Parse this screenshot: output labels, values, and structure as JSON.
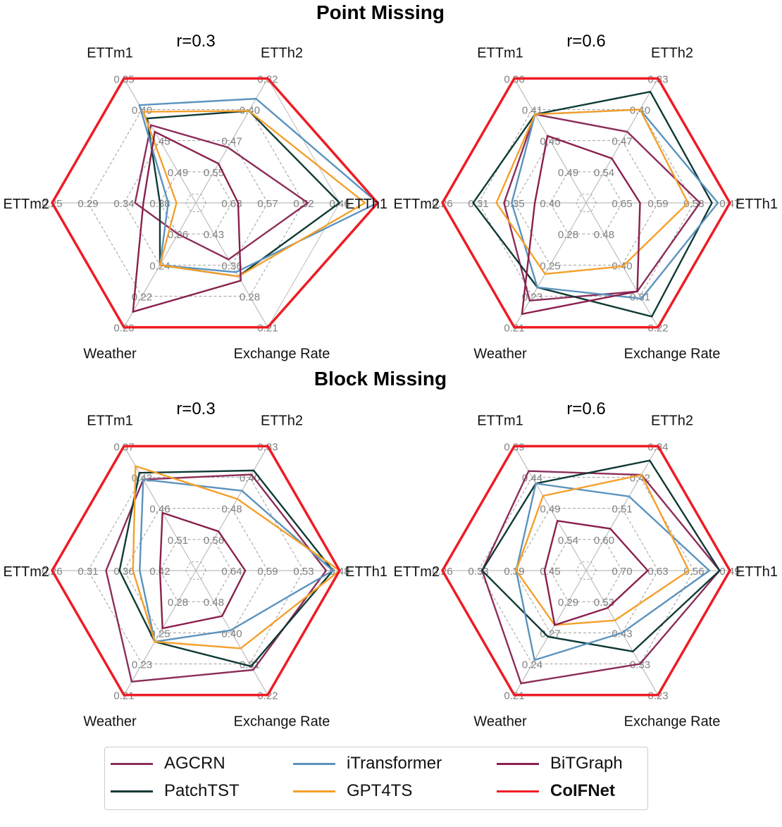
{
  "titles": {
    "top": "Point Missing",
    "bottom": "Block Missing"
  },
  "colors": {
    "AGCRN": "#8c2d5a",
    "PatchTST": "#0f3a36",
    "iTransformer": "#5b93be",
    "GPT4TS": "#f4a02b",
    "BiTGraph": "#8a1f4e",
    "CoIFNet": "#ee1c25",
    "grid_solid": "#bdbdbd",
    "grid_dash": "#9e9e9e",
    "tick": "#808080"
  },
  "legend": [
    {
      "name": "AGCRN",
      "label": "AGCRN",
      "bold": false
    },
    {
      "name": "PatchTST",
      "label": "PatchTST",
      "bold": false
    },
    {
      "name": "iTransformer",
      "label": "iTransformer",
      "bold": false
    },
    {
      "name": "GPT4TS",
      "label": "GPT4TS",
      "bold": false
    },
    {
      "name": "BiTGraph",
      "label": "BiTGraph",
      "bold": false
    },
    {
      "name": "CoIFNet",
      "label": "CoIFNet",
      "bold": true
    }
  ],
  "chart_data": [
    {
      "type": "radar",
      "section": "Point Missing",
      "title": "r=0.3",
      "axes": [
        "ETTh1",
        "ETTh2",
        "ETTm1",
        "ETTm2",
        "Weather",
        "Exchange Rate"
      ],
      "tick_labels": [
        [
          "0.63",
          "0.57",
          "0.52",
          "0.46"
        ],
        [
          "0.55",
          "0.47",
          "0.40",
          "0.32"
        ],
        [
          "0.49",
          "0.45",
          "0.40",
          "0.35"
        ],
        [
          "0.38",
          "0.34",
          "0.29",
          "0.25"
        ],
        [
          "0.26",
          "0.24",
          "0.22",
          "0.20"
        ],
        [
          "0.43",
          "0.36",
          "0.28",
          "0.21"
        ]
      ],
      "series": [
        {
          "name": "AGCRN",
          "values": [
            0.51,
            0.49,
            0.42,
            0.35,
            0.26,
            0.37
          ]
        },
        {
          "name": "PatchTST",
          "values": [
            0.46,
            0.4,
            0.41,
            0.38,
            0.24,
            0.33
          ]
        },
        {
          "name": "iTransformer",
          "values": [
            0.4,
            0.37,
            0.39,
            0.39,
            0.24,
            0.34
          ]
        },
        {
          "name": "GPT4TS",
          "values": [
            0.42,
            0.4,
            0.4,
            0.4,
            0.24,
            0.33
          ]
        },
        {
          "name": "BiTGraph",
          "values": [
            0.62,
            0.53,
            0.43,
            0.36,
            0.21,
            0.32
          ]
        },
        {
          "name": "CoIFNet",
          "values": [
            0.4,
            0.32,
            0.35,
            0.25,
            0.2,
            0.21
          ]
        }
      ]
    },
    {
      "type": "radar",
      "section": "Point Missing",
      "title": "r=0.6",
      "axes": [
        "ETTh1",
        "ETTh2",
        "ETTm1",
        "ETTm2",
        "Weather",
        "Exchange Rate"
      ],
      "tick_labels": [
        [
          "0.65",
          "0.59",
          "0.53",
          "0.47"
        ],
        [
          "0.54",
          "0.47",
          "0.40",
          "0.33"
        ],
        [
          "0.49",
          "0.45",
          "0.41",
          "0.36"
        ],
        [
          "0.40",
          "0.35",
          "0.31",
          "0.26"
        ],
        [
          "0.28",
          "0.25",
          "0.23",
          "0.21"
        ],
        [
          "0.48",
          "0.40",
          "0.31",
          "0.22"
        ]
      ],
      "series": [
        {
          "name": "AGCRN",
          "values": [
            0.52,
            0.45,
            0.41,
            0.34,
            0.23,
            0.32
          ]
        },
        {
          "name": "PatchTST",
          "values": [
            0.5,
            0.36,
            0.41,
            0.3,
            0.24,
            0.25
          ]
        },
        {
          "name": "iTransformer",
          "values": [
            0.49,
            0.4,
            0.41,
            0.35,
            0.24,
            0.3
          ]
        },
        {
          "name": "GPT4TS",
          "values": [
            0.54,
            0.4,
            0.41,
            0.33,
            0.25,
            0.39
          ]
        },
        {
          "name": "BiTGraph",
          "values": [
            0.62,
            0.51,
            0.44,
            0.38,
            0.22,
            0.32
          ]
        },
        {
          "name": "CoIFNet",
          "values": [
            0.47,
            0.33,
            0.36,
            0.26,
            0.21,
            0.22
          ]
        }
      ]
    },
    {
      "type": "radar",
      "section": "Block Missing",
      "title": "r=0.3",
      "axes": [
        "ETTh1",
        "ETTh2",
        "ETTm1",
        "ETTm2",
        "Weather",
        "Exchange Rate"
      ],
      "tick_labels": [
        [
          "0.64",
          "0.59",
          "0.53",
          "0.48"
        ],
        [
          "0.56",
          "0.48",
          "0.40",
          "0.33"
        ],
        [
          "0.51",
          "0.46",
          "0.42",
          "0.37"
        ],
        [
          "0.42",
          "0.36",
          "0.31",
          "0.26"
        ],
        [
          "0.28",
          "0.25",
          "0.23",
          "0.21"
        ],
        [
          "0.48",
          "0.40",
          "0.31",
          "0.22"
        ]
      ],
      "series": [
        {
          "name": "AGCRN",
          "values": [
            0.5,
            0.4,
            0.42,
            0.34,
            0.22,
            0.29
          ]
        },
        {
          "name": "PatchTST",
          "values": [
            0.49,
            0.39,
            0.41,
            0.36,
            0.25,
            0.3
          ]
        },
        {
          "name": "iTransformer",
          "values": [
            0.49,
            0.44,
            0.42,
            0.39,
            0.25,
            0.4
          ]
        },
        {
          "name": "GPT4TS",
          "values": [
            0.48,
            0.46,
            0.4,
            0.38,
            0.25,
            0.35
          ]
        },
        {
          "name": "BiTGraph",
          "values": [
            0.62,
            0.54,
            0.47,
            0.42,
            0.26,
            0.44
          ]
        },
        {
          "name": "CoIFNet",
          "values": [
            0.48,
            0.33,
            0.37,
            0.26,
            0.21,
            0.22
          ]
        }
      ]
    },
    {
      "type": "radar",
      "section": "Block Missing",
      "title": "r=0.6",
      "axes": [
        "ETTh1",
        "ETTh2",
        "ETTm1",
        "ETTm2",
        "Weather",
        "Exchange Rate"
      ],
      "tick_labels": [
        [
          "0.70",
          "0.63",
          "0.56",
          "0.49"
        ],
        [
          "0.60",
          "0.51",
          "0.42",
          "0.34"
        ],
        [
          "0.54",
          "0.49",
          "0.44",
          "0.39"
        ],
        [
          "0.45",
          "0.39",
          "0.33",
          "0.26"
        ],
        [
          "0.29",
          "0.27",
          "0.24",
          "0.21"
        ],
        [
          "0.53",
          "0.43",
          "0.33",
          "0.23"
        ]
      ],
      "series": [
        {
          "name": "AGCRN",
          "values": [
            0.51,
            0.42,
            0.43,
            0.33,
            0.22,
            0.33
          ]
        },
        {
          "name": "PatchTST",
          "values": [
            0.51,
            0.38,
            0.45,
            0.33,
            0.26,
            0.37
          ]
        },
        {
          "name": "iTransformer",
          "values": [
            0.53,
            0.48,
            0.45,
            0.39,
            0.24,
            0.43
          ]
        },
        {
          "name": "GPT4TS",
          "values": [
            0.57,
            0.42,
            0.47,
            0.39,
            0.27,
            0.47
          ]
        },
        {
          "name": "BiTGraph",
          "values": [
            0.65,
            0.57,
            0.51,
            0.44,
            0.27,
            0.51
          ]
        },
        {
          "name": "CoIFNet",
          "values": [
            0.49,
            0.34,
            0.39,
            0.26,
            0.21,
            0.23
          ]
        }
      ]
    }
  ]
}
